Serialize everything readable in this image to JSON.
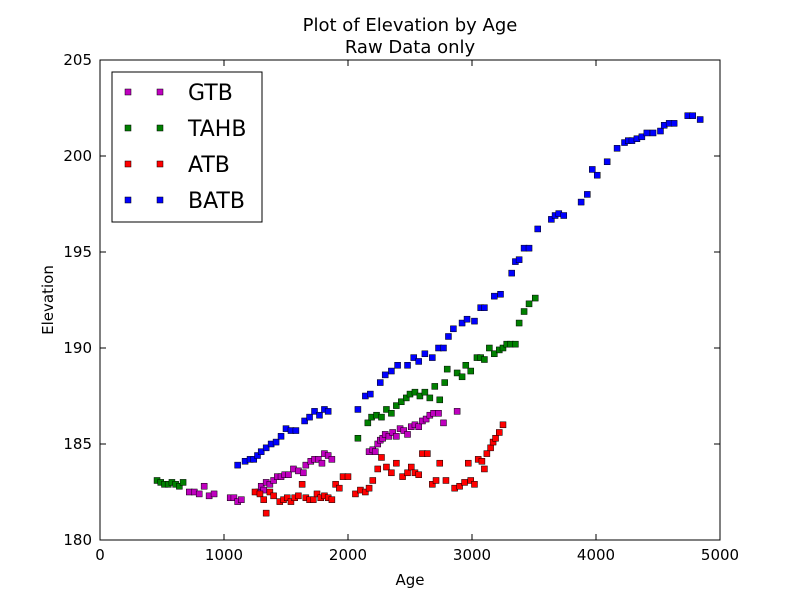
{
  "chart_data": {
    "type": "scatter",
    "title": "Plot of Elevation by Age",
    "subtitle": "Raw Data only",
    "xlabel": "Age",
    "ylabel": "Elevation",
    "xlim": [
      0,
      5000
    ],
    "ylim": [
      180,
      205
    ],
    "xticks": [
      0,
      1000,
      2000,
      3000,
      4000,
      5000
    ],
    "yticks": [
      180,
      185,
      190,
      195,
      200,
      205
    ],
    "grid": false,
    "legend_position": "top-left",
    "marker": "square",
    "series": [
      {
        "name": "GTB",
        "color": "#bf00bf",
        "points": [
          [
            720,
            182.5
          ],
          [
            760,
            182.5
          ],
          [
            800,
            182.4
          ],
          [
            840,
            182.8
          ],
          [
            880,
            182.3
          ],
          [
            920,
            182.4
          ],
          [
            1050,
            182.2
          ],
          [
            1080,
            182.2
          ],
          [
            1110,
            182.0
          ],
          [
            1140,
            182.1
          ],
          [
            1280,
            182.5
          ],
          [
            1300,
            182.8
          ],
          [
            1320,
            182.6
          ],
          [
            1340,
            183.0
          ],
          [
            1370,
            182.9
          ],
          [
            1400,
            183.1
          ],
          [
            1430,
            183.3
          ],
          [
            1460,
            183.3
          ],
          [
            1490,
            183.4
          ],
          [
            1520,
            183.4
          ],
          [
            1560,
            183.7
          ],
          [
            1600,
            183.6
          ],
          [
            1640,
            183.5
          ],
          [
            1660,
            183.9
          ],
          [
            1700,
            184.1
          ],
          [
            1730,
            184.2
          ],
          [
            1760,
            184.2
          ],
          [
            1790,
            184.0
          ],
          [
            1810,
            184.5
          ],
          [
            1840,
            184.4
          ],
          [
            1870,
            184.2
          ],
          [
            2170,
            184.6
          ],
          [
            2200,
            184.7
          ],
          [
            2220,
            184.6
          ],
          [
            2240,
            185.0
          ],
          [
            2260,
            185.2
          ],
          [
            2280,
            185.3
          ],
          [
            2300,
            185.5
          ],
          [
            2330,
            185.4
          ],
          [
            2360,
            185.6
          ],
          [
            2390,
            185.4
          ],
          [
            2420,
            185.8
          ],
          [
            2450,
            185.7
          ],
          [
            2480,
            185.5
          ],
          [
            2510,
            185.9
          ],
          [
            2540,
            186.0
          ],
          [
            2570,
            185.9
          ],
          [
            2600,
            186.2
          ],
          [
            2630,
            186.3
          ],
          [
            2660,
            186.5
          ],
          [
            2690,
            186.6
          ],
          [
            2730,
            186.6
          ],
          [
            2770,
            186.1
          ],
          [
            2880,
            186.7
          ]
        ]
      },
      {
        "name": "TAHB",
        "color": "#008000",
        "points": [
          [
            460,
            183.1
          ],
          [
            490,
            183.0
          ],
          [
            520,
            182.9
          ],
          [
            550,
            182.9
          ],
          [
            580,
            183.0
          ],
          [
            610,
            182.9
          ],
          [
            640,
            182.8
          ],
          [
            670,
            183.0
          ],
          [
            2080,
            185.3
          ],
          [
            2160,
            186.1
          ],
          [
            2190,
            186.4
          ],
          [
            2230,
            186.5
          ],
          [
            2270,
            186.4
          ],
          [
            2310,
            186.8
          ],
          [
            2350,
            186.6
          ],
          [
            2390,
            187.0
          ],
          [
            2430,
            187.2
          ],
          [
            2470,
            187.4
          ],
          [
            2500,
            187.6
          ],
          [
            2540,
            187.7
          ],
          [
            2580,
            187.5
          ],
          [
            2620,
            187.7
          ],
          [
            2660,
            187.4
          ],
          [
            2700,
            188.0
          ],
          [
            2740,
            187.3
          ],
          [
            2780,
            188.2
          ],
          [
            2800,
            188.9
          ],
          [
            2880,
            188.7
          ],
          [
            2920,
            188.5
          ],
          [
            2950,
            189.1
          ],
          [
            2990,
            188.8
          ],
          [
            3040,
            189.5
          ],
          [
            3070,
            189.5
          ],
          [
            3100,
            189.4
          ],
          [
            3140,
            190.0
          ],
          [
            3180,
            189.7
          ],
          [
            3220,
            189.9
          ],
          [
            3250,
            190.0
          ],
          [
            3280,
            190.2
          ],
          [
            3310,
            190.2
          ],
          [
            3350,
            190.2
          ],
          [
            3380,
            191.3
          ],
          [
            3420,
            191.9
          ],
          [
            3460,
            192.3
          ],
          [
            3510,
            192.6
          ]
        ]
      },
      {
        "name": "ATB",
        "color": "#ff0000",
        "points": [
          [
            1250,
            182.5
          ],
          [
            1290,
            182.4
          ],
          [
            1320,
            182.1
          ],
          [
            1340,
            181.4
          ],
          [
            1370,
            182.5
          ],
          [
            1400,
            182.3
          ],
          [
            1450,
            182.0
          ],
          [
            1480,
            182.1
          ],
          [
            1510,
            182.2
          ],
          [
            1540,
            182.0
          ],
          [
            1570,
            182.2
          ],
          [
            1600,
            182.3
          ],
          [
            1630,
            182.9
          ],
          [
            1660,
            182.2
          ],
          [
            1690,
            182.1
          ],
          [
            1720,
            182.1
          ],
          [
            1750,
            182.4
          ],
          [
            1780,
            182.2
          ],
          [
            1810,
            182.3
          ],
          [
            1840,
            182.2
          ],
          [
            1870,
            182.1
          ],
          [
            1900,
            182.9
          ],
          [
            1930,
            182.7
          ],
          [
            1960,
            183.3
          ],
          [
            2000,
            183.3
          ],
          [
            2060,
            182.4
          ],
          [
            2100,
            182.6
          ],
          [
            2140,
            182.5
          ],
          [
            2170,
            182.7
          ],
          [
            2200,
            183.1
          ],
          [
            2240,
            183.7
          ],
          [
            2270,
            184.3
          ],
          [
            2310,
            183.8
          ],
          [
            2350,
            183.5
          ],
          [
            2390,
            184.0
          ],
          [
            2440,
            183.3
          ],
          [
            2480,
            183.5
          ],
          [
            2510,
            183.8
          ],
          [
            2540,
            183.5
          ],
          [
            2570,
            183.4
          ],
          [
            2600,
            184.5
          ],
          [
            2640,
            184.5
          ],
          [
            2680,
            182.9
          ],
          [
            2710,
            183.1
          ],
          [
            2740,
            184.0
          ],
          [
            2790,
            183.1
          ],
          [
            2860,
            182.7
          ],
          [
            2900,
            182.8
          ],
          [
            2940,
            183.0
          ],
          [
            2970,
            184.0
          ],
          [
            2990,
            183.1
          ],
          [
            3020,
            182.9
          ],
          [
            3050,
            184.2
          ],
          [
            3080,
            184.1
          ],
          [
            3100,
            183.7
          ],
          [
            3120,
            184.5
          ],
          [
            3150,
            184.8
          ],
          [
            3170,
            185.1
          ],
          [
            3190,
            185.3
          ],
          [
            3220,
            185.6
          ],
          [
            3250,
            186.0
          ]
        ]
      },
      {
        "name": "BATB",
        "color": "#0000ff",
        "points": [
          [
            1110,
            183.9
          ],
          [
            1170,
            184.1
          ],
          [
            1210,
            184.2
          ],
          [
            1240,
            184.2
          ],
          [
            1270,
            184.4
          ],
          [
            1300,
            184.6
          ],
          [
            1340,
            184.8
          ],
          [
            1380,
            185.0
          ],
          [
            1420,
            185.1
          ],
          [
            1460,
            185.4
          ],
          [
            1500,
            185.8
          ],
          [
            1540,
            185.7
          ],
          [
            1580,
            185.7
          ],
          [
            1650,
            186.2
          ],
          [
            1690,
            186.4
          ],
          [
            1730,
            186.7
          ],
          [
            1770,
            186.5
          ],
          [
            1810,
            186.8
          ],
          [
            1840,
            186.7
          ],
          [
            2080,
            186.8
          ],
          [
            2140,
            187.5
          ],
          [
            2180,
            187.6
          ],
          [
            2260,
            188.2
          ],
          [
            2300,
            188.6
          ],
          [
            2350,
            188.8
          ],
          [
            2400,
            189.1
          ],
          [
            2480,
            189.1
          ],
          [
            2530,
            189.5
          ],
          [
            2570,
            189.3
          ],
          [
            2620,
            189.7
          ],
          [
            2680,
            189.5
          ],
          [
            2730,
            190.0
          ],
          [
            2770,
            190.0
          ],
          [
            2810,
            190.6
          ],
          [
            2850,
            191.0
          ],
          [
            2920,
            191.3
          ],
          [
            2960,
            191.5
          ],
          [
            3020,
            191.4
          ],
          [
            3070,
            192.1
          ],
          [
            3100,
            192.1
          ],
          [
            3180,
            192.7
          ],
          [
            3230,
            192.8
          ],
          [
            3320,
            193.9
          ],
          [
            3350,
            194.5
          ],
          [
            3380,
            194.6
          ],
          [
            3420,
            195.2
          ],
          [
            3460,
            195.2
          ],
          [
            3530,
            196.2
          ],
          [
            3640,
            196.7
          ],
          [
            3670,
            196.9
          ],
          [
            3700,
            197.0
          ],
          [
            3740,
            196.9
          ],
          [
            3880,
            197.6
          ],
          [
            3930,
            198.0
          ],
          [
            3970,
            199.3
          ],
          [
            4010,
            199.0
          ],
          [
            4090,
            199.7
          ],
          [
            4170,
            200.4
          ],
          [
            4230,
            200.7
          ],
          [
            4260,
            200.8
          ],
          [
            4290,
            200.8
          ],
          [
            4330,
            200.9
          ],
          [
            4370,
            201.0
          ],
          [
            4410,
            201.2
          ],
          [
            4460,
            201.2
          ],
          [
            4520,
            201.3
          ],
          [
            4550,
            201.6
          ],
          [
            4590,
            201.7
          ],
          [
            4630,
            201.7
          ],
          [
            4740,
            202.1
          ],
          [
            4780,
            202.1
          ],
          [
            4840,
            201.9
          ]
        ]
      }
    ]
  }
}
